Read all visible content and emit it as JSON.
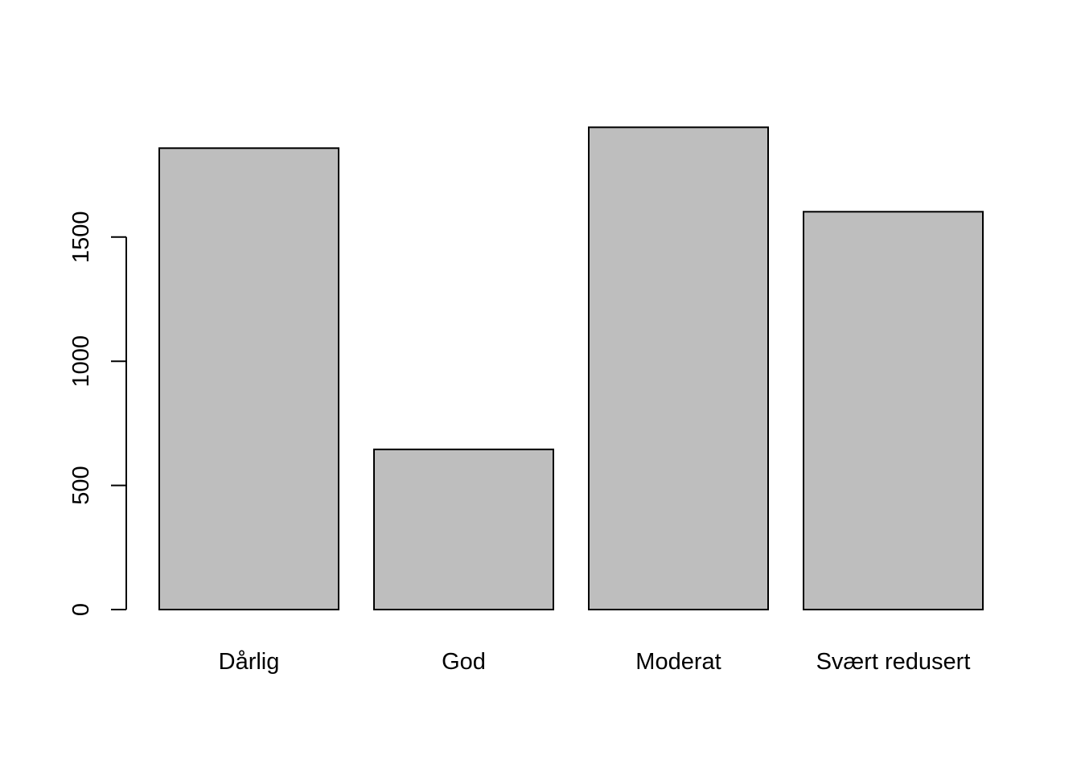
{
  "chart_data": {
    "type": "bar",
    "title": "",
    "xlabel": "",
    "ylabel": "",
    "categories": [
      "Dårlig",
      "God",
      "Moderat",
      "Svært redusert"
    ],
    "values": [
      1858,
      645,
      1942,
      1602
    ],
    "ylim": [
      0,
      2000
    ],
    "yticks": [
      0,
      500,
      1000,
      1500
    ],
    "ytick_labels": [
      "0",
      "500",
      "1000",
      "1500"
    ],
    "grid": false,
    "legend": "none",
    "colors": {
      "bar_fill": "#bebebe",
      "bar_stroke": "#000000",
      "axis": "#000000",
      "background": "#ffffff"
    }
  }
}
